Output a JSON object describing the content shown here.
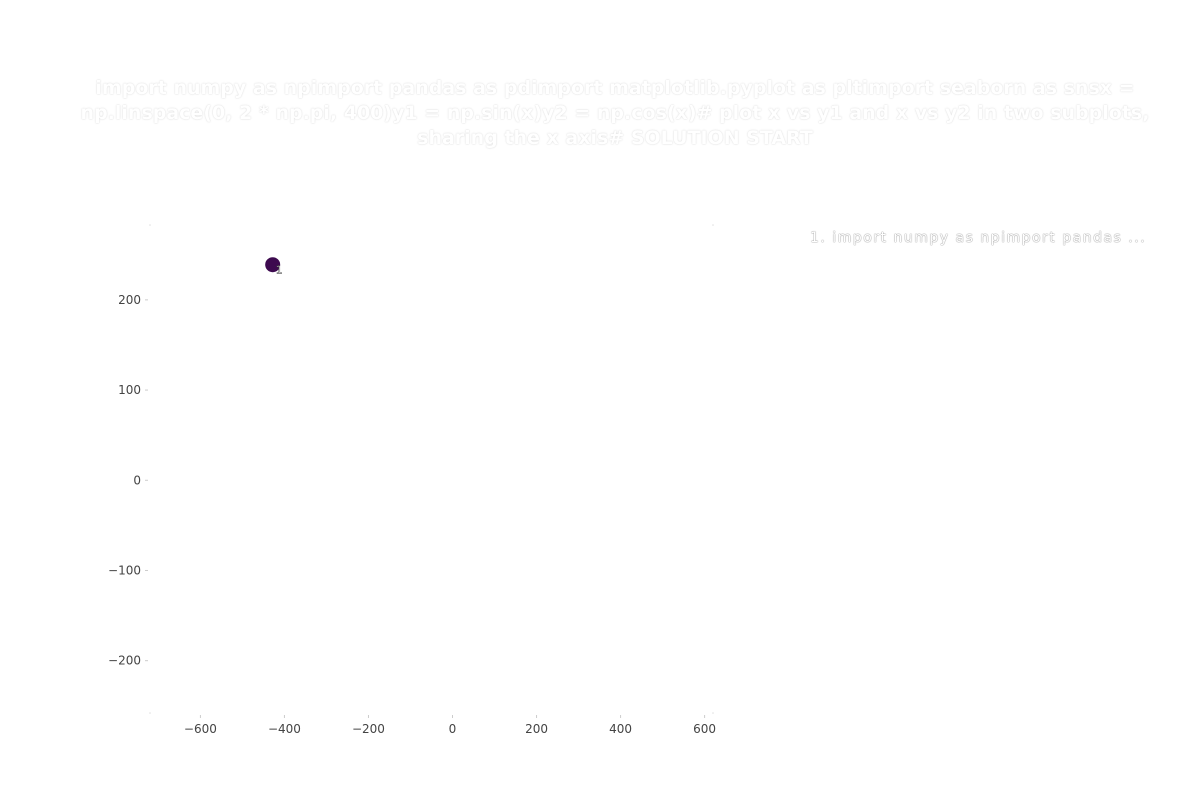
{
  "chart_data": {
    "type": "scatter",
    "title": "import numpy as npimport pandas as pdimport matplotlib.pyplot as pltimport seaborn as snsx = np.linspace(0, 2 * np.pi, 400)y1 = np.sin(x)y2 = np.cos(x)# plot x vs y1 and x vs y2 in two subplots, sharing the x axis# SOLUTION START",
    "xlabel": "",
    "ylabel": "",
    "xlim": [
      -720,
      620
    ],
    "ylim": [
      -258,
      283
    ],
    "x_ticks": [
      -600,
      -400,
      -200,
      0,
      200,
      400,
      600
    ],
    "x_tick_labels": [
      "−600",
      "−400",
      "−200",
      "0",
      "200",
      "400",
      "600"
    ],
    "y_ticks": [
      -200,
      -100,
      0,
      100,
      200
    ],
    "y_tick_labels": [
      "−200",
      "−100",
      "0",
      "100",
      "200"
    ],
    "grid": false,
    "points": [
      {
        "x": -428,
        "y": 239,
        "label": "1",
        "color": "#3d0a4f"
      }
    ],
    "legend": {
      "placement": "right",
      "entries": [
        "1.  import  numpy  as  npimport  pandas  ..."
      ]
    }
  }
}
